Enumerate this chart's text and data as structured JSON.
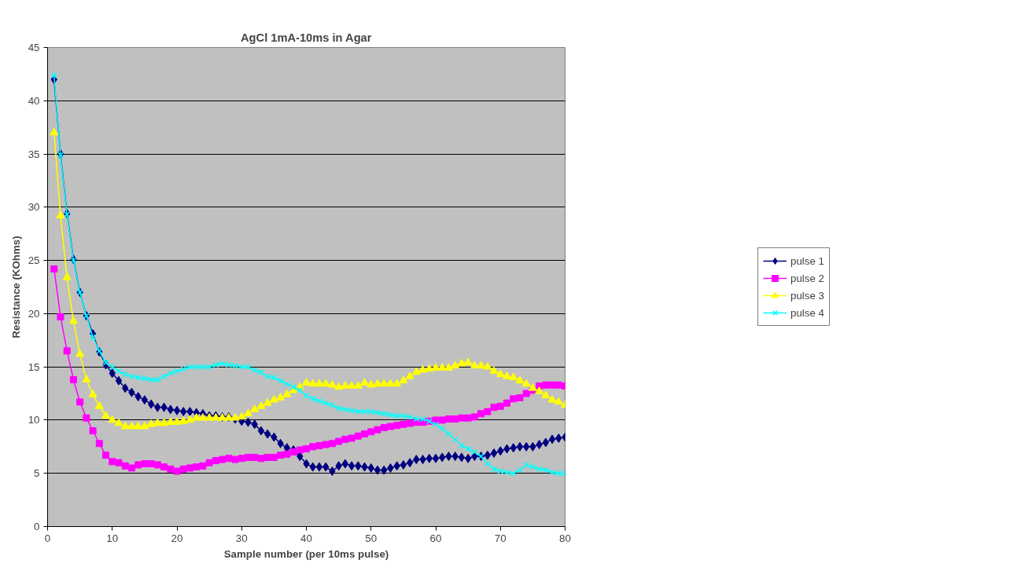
{
  "chart_data": {
    "type": "line",
    "title": "AgCl 1mA-10ms in Agar",
    "xlabel": "Sample number (per 10ms pulse)",
    "ylabel": "Resistance (KOhms)",
    "x": [
      1,
      2,
      3,
      4,
      5,
      6,
      7,
      8,
      9,
      10,
      11,
      12,
      13,
      14,
      15,
      16,
      17,
      18,
      19,
      20,
      21,
      22,
      23,
      24,
      25,
      26,
      27,
      28,
      29,
      30,
      31,
      32,
      33,
      34,
      35,
      36,
      37,
      38,
      39,
      40,
      41,
      42,
      43,
      44,
      45,
      46,
      47,
      48,
      49,
      50,
      51,
      52,
      53,
      54,
      55,
      56,
      57,
      58,
      59,
      60,
      61,
      62,
      63,
      64,
      65,
      66,
      67,
      68,
      69,
      70,
      71,
      72,
      73,
      74,
      75,
      76,
      77,
      78,
      79,
      80
    ],
    "series": [
      {
        "name": "pulse 1",
        "color": "#000080",
        "marker": "diamond",
        "values": [
          42,
          35,
          29.4,
          25.1,
          22,
          19.8,
          18.1,
          16.4,
          15.2,
          14.4,
          13.7,
          13,
          12.6,
          12.2,
          11.9,
          11.5,
          11.2,
          11.2,
          11,
          10.9,
          10.8,
          10.8,
          10.7,
          10.6,
          10.4,
          10.4,
          10.3,
          10.3,
          10.1,
          9.9,
          9.8,
          9.6,
          9,
          8.7,
          8.4,
          7.8,
          7.4,
          7.2,
          6.6,
          5.9,
          5.6,
          5.6,
          5.6,
          5.2,
          5.7,
          5.9,
          5.7,
          5.7,
          5.6,
          5.5,
          5.3,
          5.3,
          5.5,
          5.7,
          5.8,
          6,
          6.3,
          6.3,
          6.4,
          6.4,
          6.5,
          6.6,
          6.6,
          6.5,
          6.4,
          6.6,
          6.6,
          6.7,
          6.9,
          7.1,
          7.3,
          7.4,
          7.5,
          7.5,
          7.5,
          7.7,
          7.9,
          8.2,
          8.3,
          8.4
        ]
      },
      {
        "name": "pulse 2",
        "color": "#ff00ff",
        "marker": "square",
        "values": [
          24.2,
          19.7,
          16.5,
          13.8,
          11.7,
          10.2,
          9,
          7.8,
          6.7,
          6.1,
          6,
          5.7,
          5.5,
          5.8,
          5.9,
          5.9,
          5.8,
          5.6,
          5.4,
          5.2,
          5.4,
          5.5,
          5.6,
          5.7,
          6,
          6.2,
          6.3,
          6.4,
          6.3,
          6.4,
          6.5,
          6.5,
          6.4,
          6.5,
          6.5,
          6.7,
          6.8,
          7,
          7.2,
          7.3,
          7.5,
          7.6,
          7.7,
          7.8,
          8,
          8.2,
          8.3,
          8.5,
          8.7,
          8.9,
          9.1,
          9.3,
          9.4,
          9.5,
          9.6,
          9.7,
          9.8,
          9.8,
          9.9,
          10,
          10,
          10.1,
          10.1,
          10.2,
          10.2,
          10.3,
          10.6,
          10.8,
          11.2,
          11.3,
          11.6,
          12,
          12.1,
          12.5,
          12.8,
          13.2,
          13.3,
          13.3,
          13.3,
          13.2
        ]
      },
      {
        "name": "pulse 3",
        "color": "#ffff00",
        "marker": "triangle",
        "values": [
          37,
          29.2,
          23.4,
          19.3,
          16.2,
          13.8,
          12.4,
          11.3,
          10.4,
          10,
          9.7,
          9.4,
          9.4,
          9.4,
          9.4,
          9.6,
          9.7,
          9.7,
          9.8,
          9.8,
          9.9,
          10,
          10.2,
          10.2,
          10.2,
          10.2,
          10.2,
          10.2,
          10.2,
          10.3,
          10.6,
          11,
          11.3,
          11.6,
          11.9,
          12.1,
          12.4,
          12.8,
          13.1,
          13.5,
          13.4,
          13.4,
          13.4,
          13.3,
          13.1,
          13.2,
          13.2,
          13.2,
          13.5,
          13.3,
          13.4,
          13.4,
          13.4,
          13.4,
          13.7,
          14.1,
          14.5,
          14.7,
          14.8,
          14.9,
          14.9,
          14.9,
          15.1,
          15.3,
          15.4,
          15.1,
          15.1,
          15,
          14.6,
          14.3,
          14.1,
          14,
          13.7,
          13.4,
          13,
          12.7,
          12.3,
          11.9,
          11.7,
          11.4
        ]
      },
      {
        "name": "pulse 4",
        "color": "#00ffff",
        "marker": "cross",
        "values": [
          42.4,
          34.9,
          29.3,
          25,
          22,
          19.8,
          17.8,
          16.5,
          15.4,
          15,
          14.6,
          14.3,
          14.1,
          14,
          13.9,
          13.8,
          13.8,
          14.1,
          14.4,
          14.6,
          14.8,
          15,
          15,
          15,
          15,
          15.2,
          15.3,
          15.2,
          15.1,
          15,
          15,
          14.7,
          14.5,
          14.1,
          14,
          13.7,
          13.4,
          13.1,
          12.8,
          12.3,
          12,
          11.8,
          11.6,
          11.4,
          11.1,
          11,
          10.9,
          10.8,
          10.8,
          10.8,
          10.7,
          10.6,
          10.5,
          10.4,
          10.4,
          10.3,
          10.1,
          10.1,
          9.9,
          9.6,
          9.2,
          8.7,
          8.2,
          7.6,
          7.3,
          7,
          6.6,
          5.9,
          5.4,
          5.2,
          5.1,
          5,
          5.3,
          5.8,
          5.6,
          5.4,
          5.3,
          5.1,
          5,
          5
        ]
      }
    ],
    "xlim": [
      0,
      80
    ],
    "xticks": [
      0,
      10,
      20,
      30,
      40,
      50,
      60,
      70,
      80
    ],
    "ylim": [
      0,
      45
    ],
    "yticks": [
      0,
      5,
      10,
      15,
      20,
      25,
      30,
      35,
      40,
      45
    ],
    "grid": "y",
    "legend": "right",
    "line_style": "solid"
  }
}
